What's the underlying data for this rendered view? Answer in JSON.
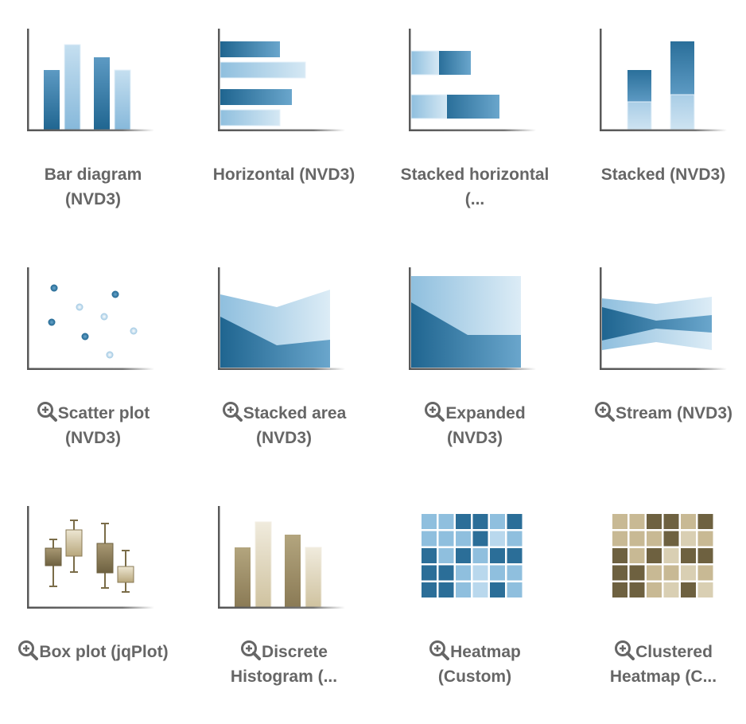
{
  "colors": {
    "label_text": "#666666",
    "blue_dark": "#2f6f98",
    "blue_light": "#a9cde6",
    "tan_dark": "#8a7a55",
    "tan_light": "#e4dcc6",
    "axis": "#5a5a5a"
  },
  "tiles": [
    {
      "id": "bar",
      "line1": "Bar diagram",
      "line2": "(NVD3)",
      "icon": "bar-chart-icon",
      "zoom": false
    },
    {
      "id": "horizontal",
      "line1": "Horizontal (NVD3)",
      "line2": "",
      "icon": "horizontal-bar-icon",
      "zoom": false
    },
    {
      "id": "stacked-horizontal",
      "line1": "Stacked horizontal",
      "line2": "(...",
      "icon": "stacked-horizontal-icon",
      "zoom": false
    },
    {
      "id": "stacked",
      "line1": "Stacked (NVD3)",
      "line2": "",
      "icon": "stacked-bar-icon",
      "zoom": false
    },
    {
      "id": "scatter",
      "line1": "Scatter plot",
      "line2": "(NVD3)",
      "icon": "scatter-plot-icon",
      "zoom": true
    },
    {
      "id": "stacked-area",
      "line1": "Stacked area",
      "line2": "(NVD3)",
      "icon": "stacked-area-icon",
      "zoom": true
    },
    {
      "id": "expanded",
      "line1": "Expanded",
      "line2": "(NVD3)",
      "icon": "expanded-area-icon",
      "zoom": true
    },
    {
      "id": "stream",
      "line1": "Stream (NVD3)",
      "line2": "",
      "icon": "stream-icon",
      "zoom": true
    },
    {
      "id": "boxplot",
      "line1": "Box plot (jqPlot)",
      "line2": "",
      "icon": "box-plot-icon",
      "zoom": true
    },
    {
      "id": "discrete-histogram",
      "line1": "Discrete",
      "line2": "Histogram (...",
      "icon": "histogram-icon",
      "zoom": true
    },
    {
      "id": "heatmap",
      "line1": "Heatmap",
      "line2": "(Custom)",
      "icon": "heatmap-icon",
      "zoom": true
    },
    {
      "id": "clustered-heatmap",
      "line1": "Clustered",
      "line2": "Heatmap (C...",
      "icon": "clustered-heatmap-icon",
      "zoom": true
    }
  ]
}
